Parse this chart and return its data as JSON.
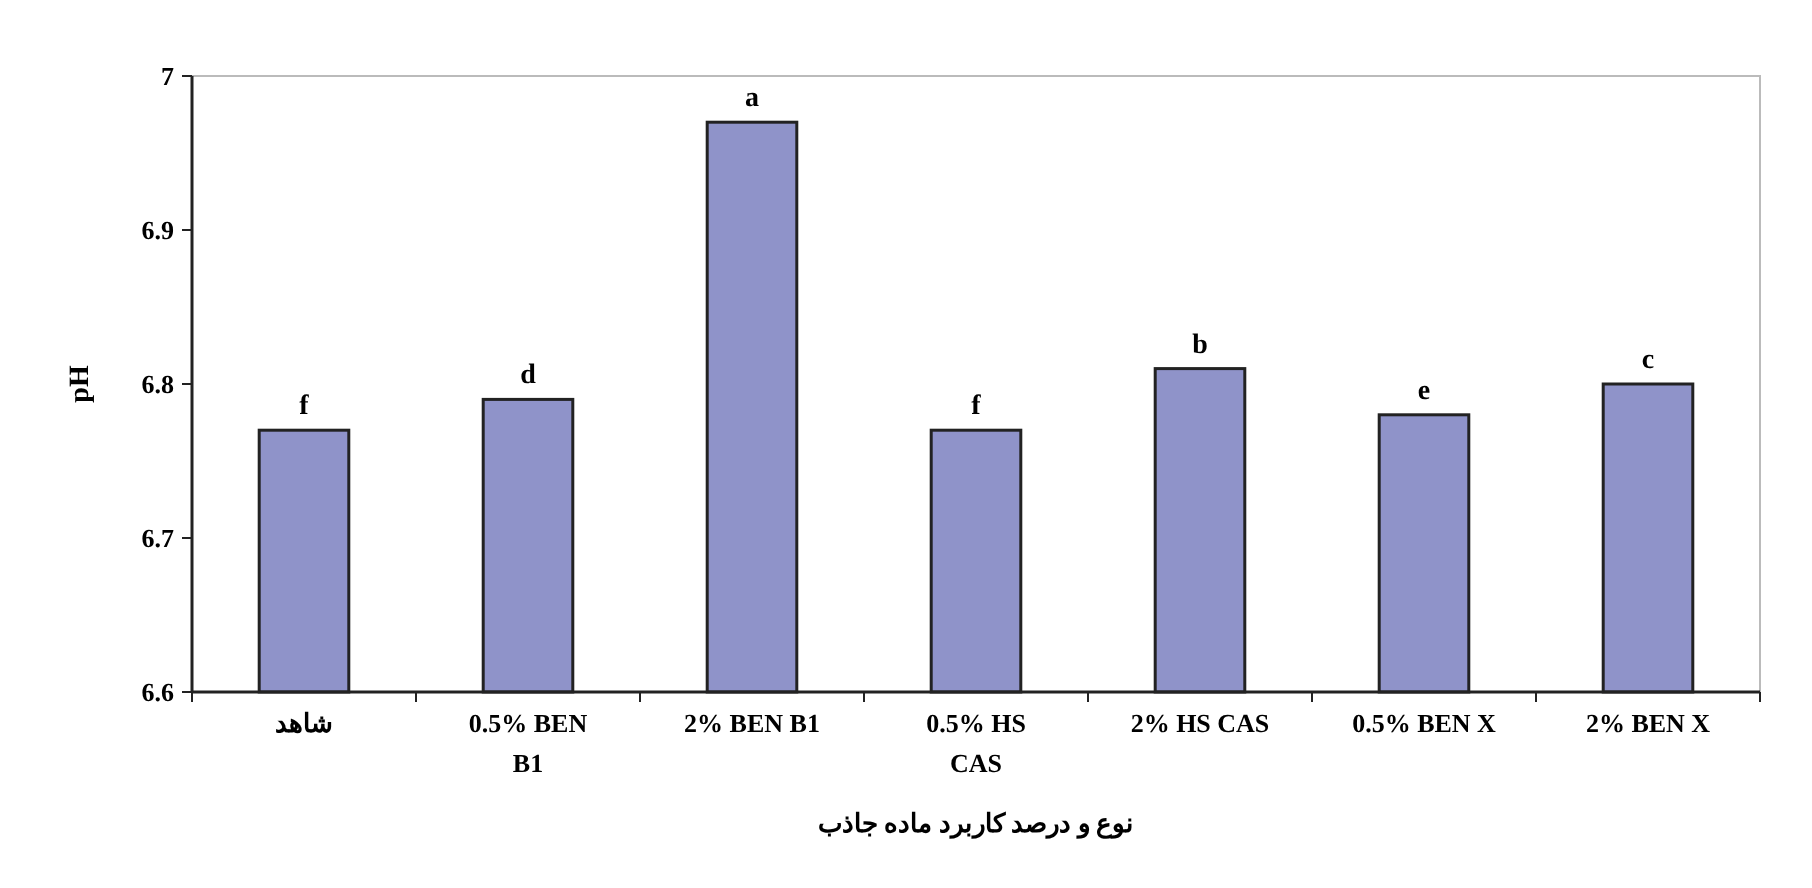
{
  "chart_data": {
    "type": "bar",
    "ylabel": "pH",
    "xlabel": "نوع و درصد کاربرد ماده جاذب",
    "categories": [
      "شاهد",
      "0.5% BEN B1",
      "2% BEN B1",
      "0.5% HS CAS",
      "2% HS CAS",
      "0.5% BEN X",
      "2% BEN X"
    ],
    "values": [
      6.77,
      6.79,
      6.97,
      6.77,
      6.81,
      6.78,
      6.8
    ],
    "color": "#8f93c9",
    "ylim": [
      6.6,
      7
    ],
    "yticks": [
      6.6,
      6.7,
      6.8,
      6.9,
      7
    ],
    "grid": false,
    "annotations": [
      {
        "text": "f",
        "x": "شاهد",
        "y": 6.77
      },
      {
        "text": "d",
        "x": "0.5% BEN B1",
        "y": 6.79
      },
      {
        "text": "a",
        "x": "2% BEN B1",
        "y": 6.97
      },
      {
        "text": "f",
        "x": "0.5% HS CAS",
        "y": 6.77
      },
      {
        "text": "b",
        "x": "2% HS CAS",
        "y": 6.81
      },
      {
        "text": "e",
        "x": "0.5% BEN X",
        "y": 6.78
      },
      {
        "text": "c",
        "x": "2% BEN X",
        "y": 6.8
      }
    ]
  }
}
